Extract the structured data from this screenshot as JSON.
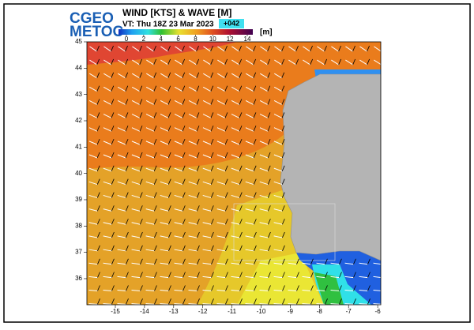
{
  "header": {
    "logo": [
      "CGEO",
      "METOC"
    ],
    "title": "WIND [KTS] & WAVE [M]",
    "valid_time": "VT: Thu 18Z 23 Mar 2023",
    "forecast_hour": "+042"
  },
  "colorbar": {
    "ticks": [
      0,
      2,
      4,
      6,
      8,
      10,
      12,
      14
    ],
    "unit": "[m]"
  },
  "map": {
    "lat_ticks": [
      45,
      44,
      43,
      42,
      41,
      40,
      39,
      38,
      37,
      36
    ],
    "lon_ticks": [
      -15,
      -14,
      -13,
      -12,
      -11,
      -10,
      -9,
      -8,
      -7,
      -6
    ]
  }
}
